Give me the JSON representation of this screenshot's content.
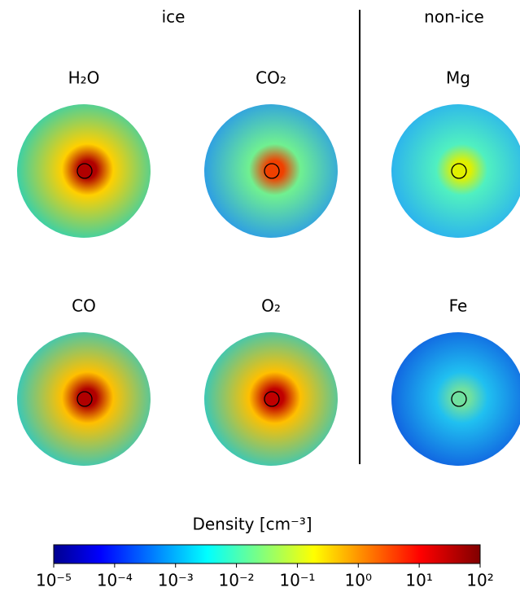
{
  "chart_data": {
    "type": "colorbar",
    "group_labels": [
      "ice",
      "non-ice"
    ],
    "panels": [
      {
        "title": "H₂O",
        "center_color": "#b00000",
        "mid_color": "#ffd000",
        "edge_color": "#30d0b0"
      },
      {
        "title": "CO₂",
        "center_color": "#f04000",
        "mid_color": "#70f090",
        "edge_color": "#2a9ae8"
      },
      {
        "title": "Mg",
        "center_color": "#e0f000",
        "mid_color": "#50f0c0",
        "edge_color": "#2ab0f0"
      },
      {
        "title": "CO",
        "center_color": "#b00000",
        "mid_color": "#ffc000",
        "edge_color": "#30c8c0"
      },
      {
        "title": "O₂",
        "center_color": "#c00000",
        "mid_color": "#ffc000",
        "edge_color": "#30c8c0"
      },
      {
        "title": "Fe",
        "center_color": "#70e0a0",
        "mid_color": "#20c0f0",
        "edge_color": "#1060e0"
      }
    ],
    "colorbar_label": "Density [cm⁻³]",
    "log": true,
    "xlim": [
      1e-05,
      100
    ],
    "xticks": [
      {
        "value": 1e-05,
        "label": "10⁻⁵"
      },
      {
        "value": 0.0001,
        "label": "10⁻⁴"
      },
      {
        "value": 0.001,
        "label": "10⁻³"
      },
      {
        "value": 0.01,
        "label": "10⁻²"
      },
      {
        "value": 0.1,
        "label": "10⁻¹"
      },
      {
        "value": 1,
        "label": "10⁰"
      },
      {
        "value": 10,
        "label": "10¹"
      },
      {
        "value": 100,
        "label": "10²"
      }
    ]
  }
}
